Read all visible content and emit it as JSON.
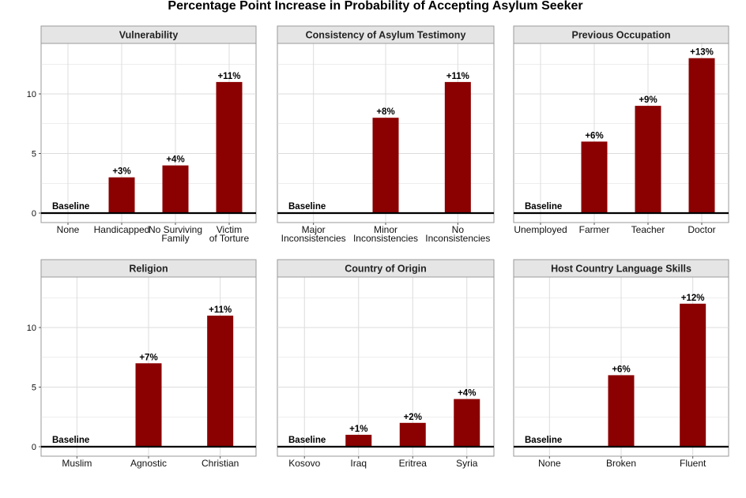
{
  "figure_title": "Percentage Point Increase in Probability of Accepting Asylum Seeker",
  "colors": {
    "bar": "#8b0000",
    "strip": "#e5e5e5",
    "grid": "#dcdcdc",
    "baseline_rule": "#000000"
  },
  "chart_data": [
    {
      "type": "bar",
      "title": "Vulnerability",
      "categories": [
        "None",
        "Handicapped",
        "No Surviving Family",
        "Victim of Torture"
      ],
      "values": [
        0,
        3,
        4,
        11
      ],
      "labels": [
        "Baseline",
        "+3%",
        "+4%",
        "+11%"
      ],
      "ylim": [
        -0.5,
        14.5
      ],
      "yticks": [
        0,
        5,
        10
      ],
      "grid": true
    },
    {
      "type": "bar",
      "title": "Consistency of Asylum Testimony",
      "categories": [
        "Major Inconsistencies",
        "Minor Inconsistencies",
        "No Inconsistencies"
      ],
      "values": [
        0,
        8,
        11
      ],
      "labels": [
        "Baseline",
        "+8%",
        "+11%"
      ],
      "ylim": [
        -0.5,
        14.5
      ],
      "yticks": [
        0,
        5,
        10
      ],
      "grid": true
    },
    {
      "type": "bar",
      "title": "Previous Occupation",
      "categories": [
        "Unemployed",
        "Farmer",
        "Teacher",
        "Doctor"
      ],
      "values": [
        0,
        6,
        9,
        13
      ],
      "labels": [
        "Baseline",
        "+6%",
        "+9%",
        "+13%"
      ],
      "ylim": [
        -0.5,
        14.5
      ],
      "yticks": [
        0,
        5,
        10
      ],
      "grid": true
    },
    {
      "type": "bar",
      "title": "Religion",
      "categories": [
        "Muslim",
        "Agnostic",
        "Christian"
      ],
      "values": [
        0,
        7,
        11
      ],
      "labels": [
        "Baseline",
        "+7%",
        "+11%"
      ],
      "ylim": [
        -0.5,
        14.5
      ],
      "yticks": [
        0,
        5,
        10
      ],
      "grid": true
    },
    {
      "type": "bar",
      "title": "Country of Origin",
      "categories": [
        "Kosovo",
        "Iraq",
        "Eritrea",
        "Syria"
      ],
      "values": [
        0,
        1,
        2,
        4
      ],
      "labels": [
        "Baseline",
        "+1%",
        "+2%",
        "+4%"
      ],
      "ylim": [
        -0.5,
        14.5
      ],
      "yticks": [
        0,
        5,
        10
      ],
      "grid": true
    },
    {
      "type": "bar",
      "title": "Host Country Language Skills",
      "categories": [
        "None",
        "Broken",
        "Fluent"
      ],
      "values": [
        0,
        6,
        12
      ],
      "labels": [
        "Baseline",
        "+6%",
        "+12%"
      ],
      "ylim": [
        -0.5,
        14.5
      ],
      "yticks": [
        0,
        5,
        10
      ],
      "grid": true
    }
  ]
}
